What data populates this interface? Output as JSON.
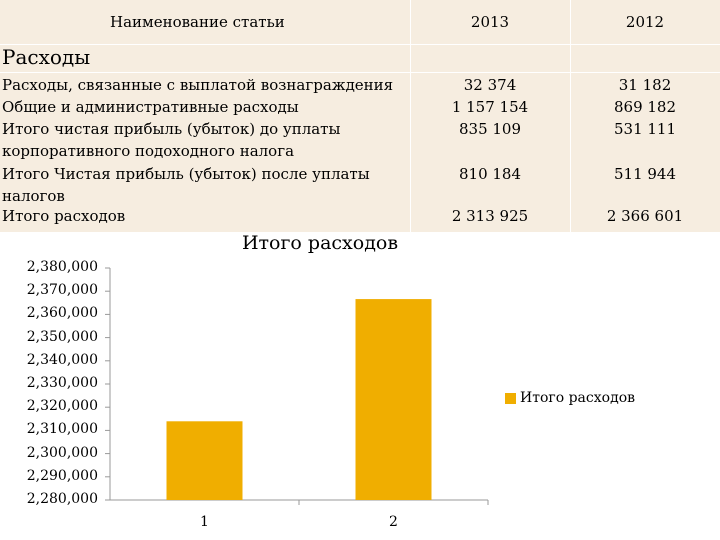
{
  "table": {
    "header": {
      "name": "Наименование статьи",
      "year1": "2013",
      "year2": "2012"
    },
    "section_title": "Расходы",
    "rows": [
      {
        "name_lines": [
          "Расходы, связанные с выплатой вознаграждения"
        ],
        "v2013": "32 374",
        "v2012": "31 182"
      },
      {
        "name_lines": [
          "Общие и административные расходы"
        ],
        "v2013": "1 157 154",
        "v2012": "869 182"
      },
      {
        "name_lines": [
          "Итого чистая прибыль (убыток) до уплаты",
          "корпоративного подоходного налога"
        ],
        "v2013": "835 109",
        "v2012": "531 111"
      },
      {
        "name_lines": [
          "Итого Чистая прибыль (убыток) после уплаты",
          "налогов"
        ],
        "v2013": "810 184",
        "v2012": "511 944"
      },
      {
        "name_lines": [
          "Итого расходов"
        ],
        "v2013": "2 313 925",
        "v2012": "2 366 601"
      }
    ]
  },
  "chart_data": {
    "type": "bar",
    "title": "Итого расходов",
    "categories": [
      "1",
      "2"
    ],
    "series": [
      {
        "name": "Итого расходов",
        "values": [
          2313925,
          2366601
        ],
        "color": "#f0ae00"
      }
    ],
    "ylim": [
      2280000,
      2380000
    ],
    "yticks": [
      "2,280,000",
      "2,290,000",
      "2,300,000",
      "2,310,000",
      "2,320,000",
      "2,330,000",
      "2,340,000",
      "2,350,000",
      "2,360,000",
      "2,370,000",
      "2,380,000"
    ],
    "ytick_values": [
      2280000,
      2290000,
      2300000,
      2310000,
      2320000,
      2330000,
      2340000,
      2350000,
      2360000,
      2370000,
      2380000
    ],
    "legend_position": "right",
    "grid": false
  }
}
